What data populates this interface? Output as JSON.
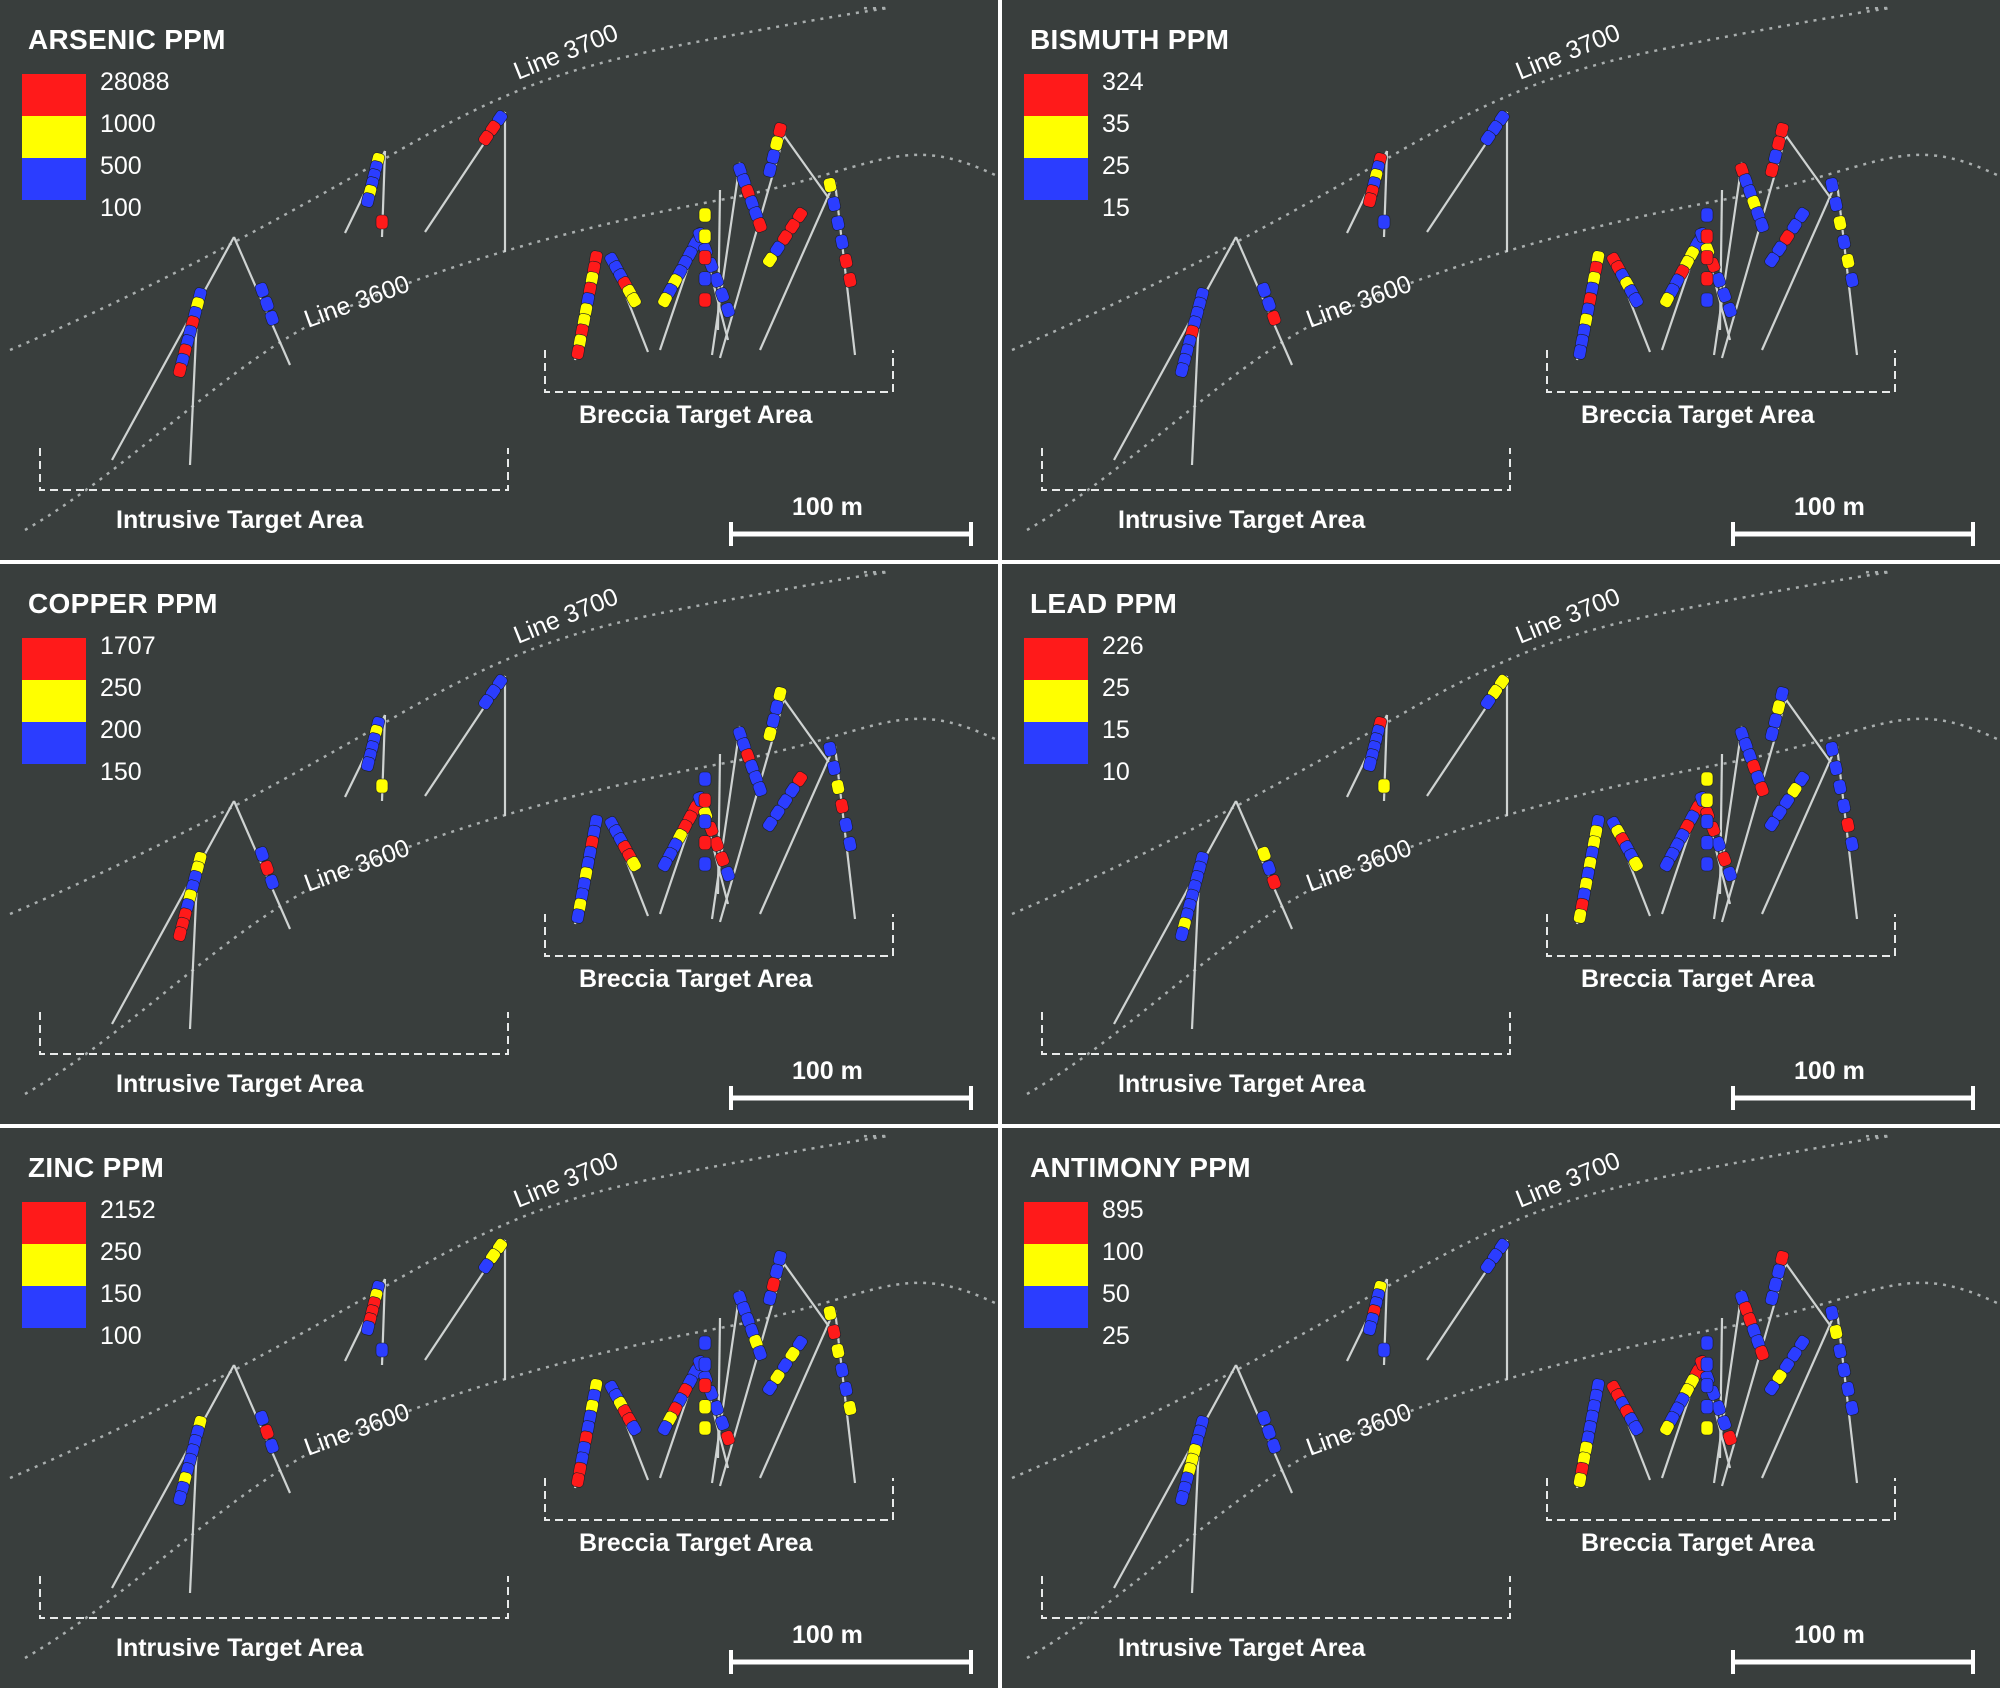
{
  "colors": {
    "background": "#393e3d",
    "high": "#ff1a1a",
    "mid": "#ffff00",
    "low": "#2b3dff",
    "trace": "#cfd3d2",
    "text": "#ffffff"
  },
  "common": {
    "line_upper": "Line 3700",
    "line_lower": "Line 3600",
    "breccia_label": "Breccia Target Area",
    "intrusive_label": "Intrusive Target Area",
    "scale_label": "100 m"
  },
  "panels": [
    {
      "id": "arsenic",
      "title": "ARSENIC PPM",
      "legend": [
        "28088",
        "1000",
        "500",
        "100"
      ]
    },
    {
      "id": "bismuth",
      "title": "BISMUTH PPM",
      "legend": [
        "324",
        "35",
        "25",
        "15"
      ]
    },
    {
      "id": "copper",
      "title": "COPPER PPM",
      "legend": [
        "1707",
        "250",
        "200",
        "150"
      ]
    },
    {
      "id": "lead",
      "title": "LEAD PPM",
      "legend": [
        "226",
        "25",
        "15",
        "10"
      ]
    },
    {
      "id": "zinc",
      "title": "ZINC PPM",
      "legend": [
        "2152",
        "250",
        "150",
        "100"
      ]
    },
    {
      "id": "antimony",
      "title": "ANTIMONY PPM",
      "legend": [
        "895",
        "100",
        "50",
        "25"
      ]
    }
  ]
}
